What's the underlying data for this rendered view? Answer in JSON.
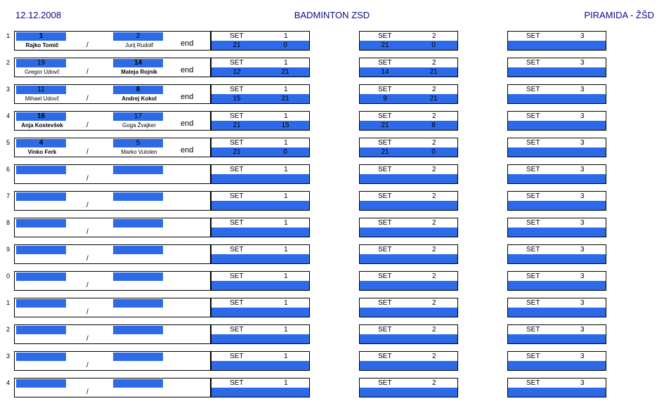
{
  "header": {
    "date": "12.12.2008",
    "title": "BADMINTON ZSD",
    "right": "PIRAMIDA - ŽŠD"
  },
  "set_label": "SET",
  "slash": "/",
  "matches": [
    {
      "no": "1",
      "p1_seed": "1",
      "p1_name": "Rajko Tomič",
      "p2_seed": "2",
      "p2_name": "Jurij Rudolf",
      "winner": 1,
      "end": "end",
      "sets": [
        {
          "n": "1",
          "a": "21",
          "b": "0"
        },
        {
          "n": "2",
          "a": "21",
          "b": "0"
        },
        {
          "n": "3",
          "a": "",
          "b": ""
        }
      ]
    },
    {
      "no": "2",
      "p1_seed": "19",
      "p1_name": "Gregor Udovč",
      "p2_seed": "14",
      "p2_name": "Mateja Rojnik",
      "winner": 2,
      "end": "end",
      "sets": [
        {
          "n": "1",
          "a": "12",
          "b": "21"
        },
        {
          "n": "2",
          "a": "14",
          "b": "21"
        },
        {
          "n": "3",
          "a": "",
          "b": ""
        }
      ]
    },
    {
      "no": "3",
      "p1_seed": "11",
      "p1_name": "Mihael Udovč",
      "p2_seed": "8",
      "p2_name": "Andrej Kokol",
      "winner": 2,
      "end": "end",
      "sets": [
        {
          "n": "1",
          "a": "15",
          "b": "21"
        },
        {
          "n": "2",
          "a": "9",
          "b": "21"
        },
        {
          "n": "3",
          "a": "",
          "b": ""
        }
      ]
    },
    {
      "no": "4",
      "p1_seed": "16",
      "p1_name": "Anja Kostevšek",
      "p2_seed": "17",
      "p2_name": "Goga Žvajker",
      "winner": 1,
      "end": "end",
      "sets": [
        {
          "n": "1",
          "a": "21",
          "b": "15"
        },
        {
          "n": "2",
          "a": "21",
          "b": "8"
        },
        {
          "n": "3",
          "a": "",
          "b": ""
        }
      ]
    },
    {
      "no": "5",
      "p1_seed": "4",
      "p1_name": "Vinko Ferk",
      "p2_seed": "5",
      "p2_name": "Marko Vutolen",
      "winner": 1,
      "end": "end",
      "sets": [
        {
          "n": "1",
          "a": "21",
          "b": "0"
        },
        {
          "n": "2",
          "a": "21",
          "b": "0"
        },
        {
          "n": "3",
          "a": "",
          "b": ""
        }
      ]
    },
    {
      "no": "6",
      "p1_seed": "",
      "p1_name": "",
      "p2_seed": "",
      "p2_name": "",
      "winner": 0,
      "end": "",
      "sets": [
        {
          "n": "1",
          "a": "",
          "b": ""
        },
        {
          "n": "2",
          "a": "",
          "b": ""
        },
        {
          "n": "3",
          "a": "",
          "b": ""
        }
      ]
    },
    {
      "no": "7",
      "p1_seed": "",
      "p1_name": "",
      "p2_seed": "",
      "p2_name": "",
      "winner": 0,
      "end": "",
      "sets": [
        {
          "n": "1",
          "a": "",
          "b": ""
        },
        {
          "n": "2",
          "a": "",
          "b": ""
        },
        {
          "n": "3",
          "a": "",
          "b": ""
        }
      ]
    },
    {
      "no": "8",
      "p1_seed": "",
      "p1_name": "",
      "p2_seed": "",
      "p2_name": "",
      "winner": 0,
      "end": "",
      "sets": [
        {
          "n": "1",
          "a": "",
          "b": ""
        },
        {
          "n": "2",
          "a": "",
          "b": ""
        },
        {
          "n": "3",
          "a": "",
          "b": ""
        }
      ]
    },
    {
      "no": "9",
      "p1_seed": "",
      "p1_name": "",
      "p2_seed": "",
      "p2_name": "",
      "winner": 0,
      "end": "",
      "sets": [
        {
          "n": "1",
          "a": "",
          "b": ""
        },
        {
          "n": "2",
          "a": "",
          "b": ""
        },
        {
          "n": "3",
          "a": "",
          "b": ""
        }
      ]
    },
    {
      "no": "0",
      "p1_seed": "",
      "p1_name": "",
      "p2_seed": "",
      "p2_name": "",
      "winner": 0,
      "end": "",
      "sets": [
        {
          "n": "1",
          "a": "",
          "b": ""
        },
        {
          "n": "2",
          "a": "",
          "b": ""
        },
        {
          "n": "3",
          "a": "",
          "b": ""
        }
      ]
    },
    {
      "no": "1",
      "p1_seed": "",
      "p1_name": "",
      "p2_seed": "",
      "p2_name": "",
      "winner": 0,
      "end": "",
      "sets": [
        {
          "n": "1",
          "a": "",
          "b": ""
        },
        {
          "n": "2",
          "a": "",
          "b": ""
        },
        {
          "n": "3",
          "a": "",
          "b": ""
        }
      ]
    },
    {
      "no": "2",
      "p1_seed": "",
      "p1_name": "",
      "p2_seed": "",
      "p2_name": "",
      "winner": 0,
      "end": "",
      "sets": [
        {
          "n": "1",
          "a": "",
          "b": ""
        },
        {
          "n": "2",
          "a": "",
          "b": ""
        },
        {
          "n": "3",
          "a": "",
          "b": ""
        }
      ]
    },
    {
      "no": "3",
      "p1_seed": "",
      "p1_name": "",
      "p2_seed": "",
      "p2_name": "",
      "winner": 0,
      "end": "",
      "sets": [
        {
          "n": "1",
          "a": "",
          "b": ""
        },
        {
          "n": "2",
          "a": "",
          "b": ""
        },
        {
          "n": "3",
          "a": "",
          "b": ""
        }
      ]
    },
    {
      "no": "4",
      "p1_seed": "",
      "p1_name": "",
      "p2_seed": "",
      "p2_name": "",
      "winner": 0,
      "end": "",
      "sets": [
        {
          "n": "1",
          "a": "",
          "b": ""
        },
        {
          "n": "2",
          "a": "",
          "b": ""
        },
        {
          "n": "3",
          "a": "",
          "b": ""
        }
      ]
    }
  ]
}
